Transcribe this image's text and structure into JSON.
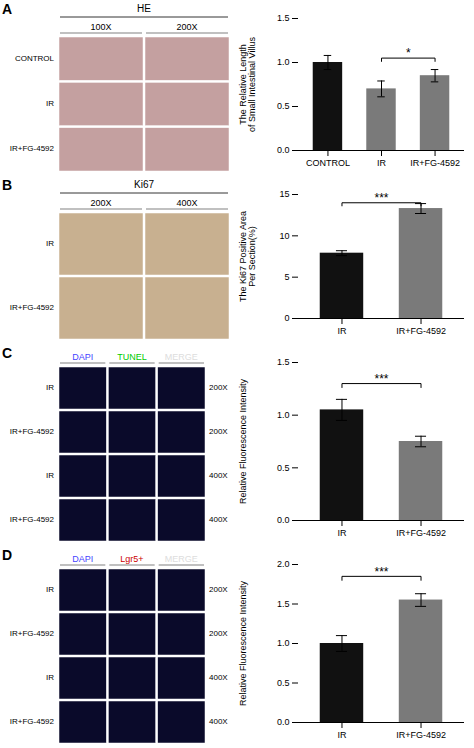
{
  "chart_data": [
    {
      "type": "image_grid",
      "panel_label": "A",
      "top_label": "HE",
      "row_labels": [
        "CONTROL",
        "IR",
        "IR+FG-4592"
      ],
      "col_labels": [
        "100X",
        "200X"
      ],
      "color": "#c4a0a0"
    },
    {
      "type": "bar",
      "categories": [
        "CONTROL",
        "IR",
        "IR+FG-4592"
      ],
      "values": [
        1.0,
        0.7,
        0.85
      ],
      "errors": [
        0.08,
        0.09,
        0.07
      ],
      "colors": [
        "#111111",
        "#7a7a7a",
        "#7a7a7a"
      ],
      "ylabel": "The Relative Length\nof Small Intestinal Villus",
      "ylim": [
        0,
        1.5
      ],
      "yticks": [
        {
          "value": 0.0,
          "label": "0.0"
        },
        0.5,
        {
          "value": 1.0,
          "label": "1.0"
        },
        1.5
      ],
      "annotations": [
        {
          "text": "*",
          "x1": "IR",
          "x2": "IR+FG-4592",
          "y": 1.05
        }
      ]
    },
    {
      "type": "image_grid",
      "panel_label": "B",
      "top_label": "Ki67",
      "row_labels": [
        "IR",
        "IR+FG-4592"
      ],
      "col_labels": [
        "200X",
        "400X"
      ],
      "color": "#c8b090"
    },
    {
      "type": "bar",
      "categories": [
        "IR",
        "IR+FG-4592"
      ],
      "values": [
        7.9,
        13.3
      ],
      "errors": [
        0.3,
        0.6
      ],
      "colors": [
        "#111111",
        "#7a7a7a"
      ],
      "ylabel": "The Ki67 Positive Area\nPer Section(%)",
      "ylim": [
        0,
        15
      ],
      "yticks": [
        0,
        5,
        10,
        15
      ],
      "annotations": [
        {
          "text": "***",
          "x1": "IR",
          "x2": "IR+FG-4592",
          "y": 14.0
        }
      ]
    },
    {
      "type": "image_grid",
      "panel_label": "C",
      "row_labels": [
        "IR",
        "IR+FG-4592",
        "IR",
        "IR+FG-4592"
      ],
      "col_labels": [
        "DAPI",
        "TUNEL",
        "MERGE"
      ],
      "col_label_colors": [
        "#4444ff",
        "#00cc00",
        "#dddddd"
      ],
      "mag_labels": [
        "200X",
        "200X",
        "400X",
        "400X"
      ],
      "color": "#0a0a2a"
    },
    {
      "type": "bar",
      "categories": [
        "IR",
        "IR+FG-4592"
      ],
      "values": [
        1.05,
        0.75
      ],
      "errors": [
        0.1,
        0.05
      ],
      "colors": [
        "#111111",
        "#7a7a7a"
      ],
      "ylabel": "Relative Fluorescence Intensity",
      "ylim": [
        0,
        1.5
      ],
      "yticks": [
        {
          "value": 0.0,
          "label": "0.0"
        },
        0.5,
        {
          "value": 1.0,
          "label": "1.0"
        },
        1.5
      ],
      "annotations": [
        {
          "text": "***",
          "x1": "IR",
          "x2": "IR+FG-4592",
          "y": 1.3
        }
      ]
    },
    {
      "type": "image_grid",
      "panel_label": "D",
      "row_labels": [
        "IR",
        "IR+FG-4592",
        "IR",
        "IR+FG-4592"
      ],
      "col_labels": [
        "DAPI",
        "Lgr5+",
        "MERGE"
      ],
      "col_label_colors": [
        "#4444ff",
        "#cc0000",
        "#dddddd"
      ],
      "mag_labels": [
        "200X",
        "200X",
        "400X",
        "400X"
      ],
      "color": "#0a0a2a"
    },
    {
      "type": "bar",
      "categories": [
        "IR",
        "IR+FG-4592"
      ],
      "values": [
        1.0,
        1.55
      ],
      "errors": [
        0.1,
        0.08
      ],
      "colors": [
        "#111111",
        "#7a7a7a"
      ],
      "ylabel": "Relative Fluorescence Intensity",
      "ylim": [
        0,
        2.0
      ],
      "yticks": [
        {
          "value": 0.0,
          "label": "0.0"
        },
        {
          "value": 0.5,
          "label": "0.5"
        },
        {
          "value": 1.0,
          "label": "1.0"
        },
        {
          "value": 1.5,
          "label": "1.5"
        },
        {
          "value": 2.0,
          "label": "2.0"
        }
      ],
      "annotations": [
        {
          "text": "***",
          "x1": "IR",
          "x2": "IR+FG-4592",
          "y": 1.85
        }
      ]
    }
  ]
}
